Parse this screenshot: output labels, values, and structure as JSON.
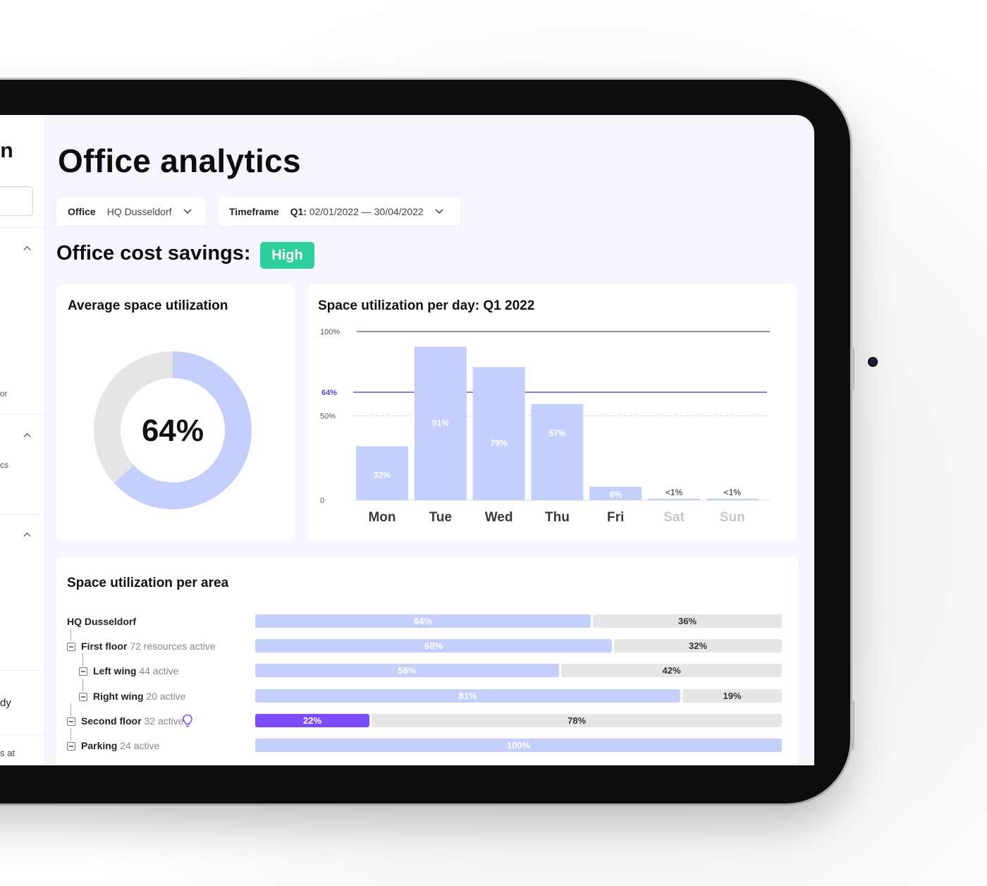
{
  "sidebar": {
    "title_fragment": "in",
    "fragments": [
      "or",
      "cs",
      "dy",
      "s at"
    ]
  },
  "page": {
    "title": "Office analytics"
  },
  "filters": {
    "office_label": "Office",
    "office_value": "HQ Dusseldorf",
    "timeframe_label": "Timeframe",
    "timeframe_quarter": "Q1:",
    "timeframe_range": "02/01/2022 — 30/04/2022"
  },
  "savings": {
    "label": "Office cost savings:",
    "level": "High",
    "level_color": "#2fcf9c"
  },
  "avg_card": {
    "title": "Average space utilization",
    "value_label": "64%",
    "value": 64
  },
  "day_card": {
    "title": "Space utilization per day: Q1 2022"
  },
  "chart_data": {
    "type": "bar",
    "title": "Space utilization per day: Q1 2022",
    "categories": [
      "Mon",
      "Tue",
      "Wed",
      "Thu",
      "Fri",
      "Sat",
      "Sun"
    ],
    "values": [
      32,
      91,
      79,
      57,
      8,
      0.5,
      0.5
    ],
    "data_labels": [
      "32%",
      "91%",
      "79%",
      "57%",
      "8%",
      "<1%",
      "<1%"
    ],
    "y_ticks": [
      "0",
      "50%",
      "100%"
    ],
    "ylim": [
      0,
      100
    ],
    "reference_lines": [
      {
        "label": "64%",
        "value": 64,
        "style": "solid",
        "color": "#5b3fd1"
      },
      {
        "label": "",
        "value": 50,
        "style": "dashed",
        "color": "#cfcfd6"
      },
      {
        "label": "",
        "value": 100,
        "style": "solid",
        "color": "#555555"
      }
    ],
    "bar_color": "#c4cffb",
    "muted_categories": [
      "Sat",
      "Sun"
    ]
  },
  "area_card": {
    "title": "Space utilization per area",
    "rows": [
      {
        "name": "HQ Dusseldorf",
        "detail": "",
        "used": 64,
        "used_label": "64%",
        "free_label": "36%",
        "highlight": false,
        "level": 0
      },
      {
        "name": "First floor",
        "detail": "72 resources active",
        "used": 68,
        "used_label": "68%",
        "free_label": "32%",
        "highlight": false,
        "level": 1
      },
      {
        "name": "Left wing",
        "detail": "44 active",
        "used": 58,
        "used_label": "58%",
        "free_label": "42%",
        "highlight": false,
        "level": 2
      },
      {
        "name": "Right wing",
        "detail": "20 active",
        "used": 81,
        "used_label": "81%",
        "free_label": "19%",
        "highlight": false,
        "level": 2
      },
      {
        "name": "Second floor",
        "detail": "32 active",
        "used": 22,
        "used_label": "22%",
        "free_label": "78%",
        "highlight": true,
        "level": 1
      },
      {
        "name": "Parking",
        "detail": "24 active",
        "used": 100,
        "used_label": "100%",
        "free_label": "",
        "highlight": false,
        "level": 1
      }
    ]
  },
  "icons": {
    "chevron": "chevron-down-icon",
    "tree_toggle": "collapse-box-icon",
    "insight": "lightbulb-icon"
  }
}
